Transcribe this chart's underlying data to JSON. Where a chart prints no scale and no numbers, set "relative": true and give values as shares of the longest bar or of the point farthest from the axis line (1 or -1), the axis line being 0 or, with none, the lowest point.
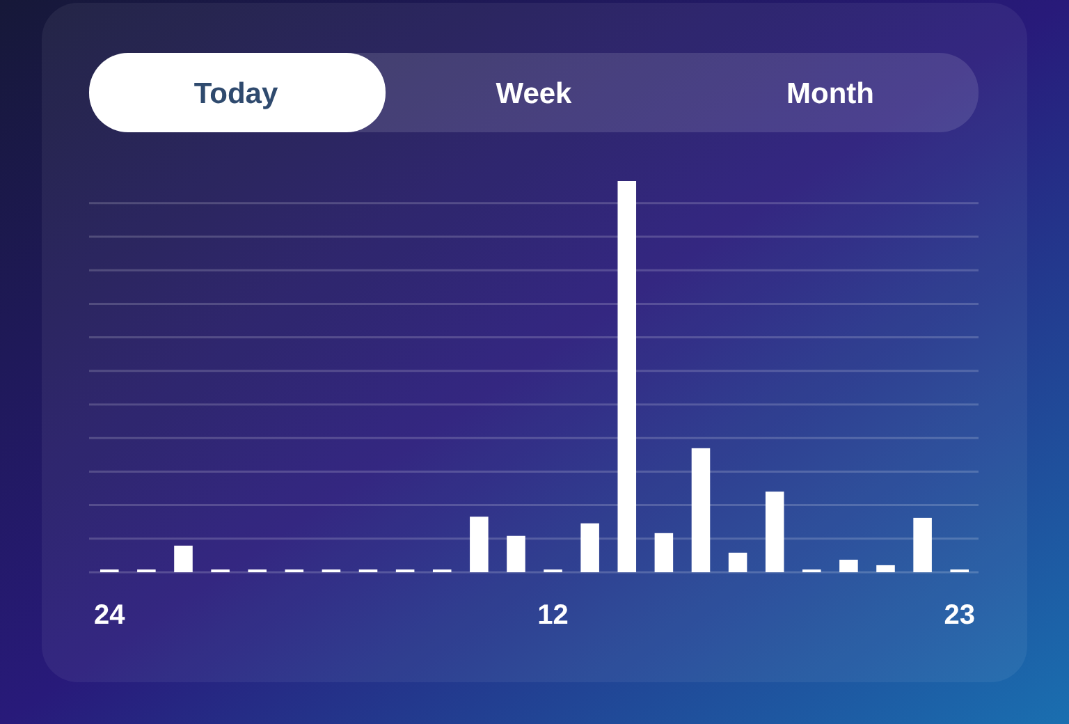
{
  "chart_data": {
    "type": "bar",
    "relative": true,
    "grid": true,
    "color": "#ffffff",
    "categories": [
      "24",
      null,
      null,
      null,
      null,
      null,
      null,
      null,
      null,
      null,
      null,
      null,
      "12",
      null,
      null,
      null,
      null,
      null,
      null,
      null,
      null,
      null,
      null,
      "23"
    ],
    "values": [
      0.007,
      0.007,
      0.068,
      0.007,
      0.007,
      0.007,
      0.007,
      0.007,
      0.007,
      0.007,
      0.142,
      0.093,
      0.007,
      0.125,
      1,
      0.1,
      0.317,
      0.05,
      0.206,
      0.007,
      0.032,
      0.018,
      0.139,
      0.007
    ],
    "annotations": [
      "Today",
      "Week",
      "Month"
    ]
  }
}
